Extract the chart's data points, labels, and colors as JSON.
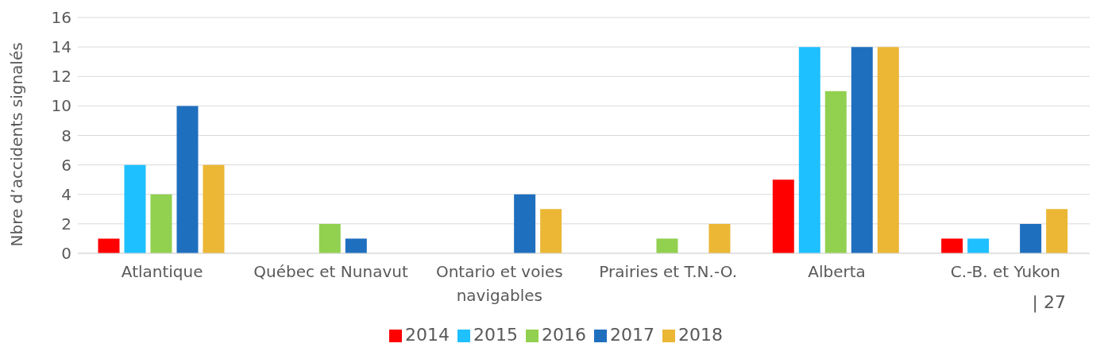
{
  "chart_data": {
    "type": "bar",
    "ylabel": "Nbre d’accidents signalés",
    "categories": [
      "Atlantique",
      "Québec et Nunavut",
      "Ontario et voies navigables",
      "Prairies et T.N.-O.",
      "Alberta",
      "C.-B. et Yukon"
    ],
    "series": [
      {
        "name": "2014",
        "color": "#ff0000",
        "values": [
          1,
          0,
          0,
          0,
          5,
          1
        ]
      },
      {
        "name": "2015",
        "color": "#1fc0ff",
        "values": [
          6,
          0,
          0,
          0,
          14,
          1
        ]
      },
      {
        "name": "2016",
        "color": "#92d050",
        "values": [
          4,
          2,
          0,
          1,
          11,
          0
        ]
      },
      {
        "name": "2017",
        "color": "#1f6fbf",
        "values": [
          10,
          1,
          4,
          0,
          14,
          2
        ]
      },
      {
        "name": "2018",
        "color": "#ebb735",
        "values": [
          6,
          0,
          3,
          2,
          14,
          3
        ]
      }
    ],
    "ylim": [
      0,
      16
    ],
    "yticks": [
      0,
      2,
      4,
      6,
      8,
      10,
      12,
      14,
      16
    ],
    "grid": "y",
    "legend": "bottom",
    "annotations": [
      "| 27"
    ]
  }
}
